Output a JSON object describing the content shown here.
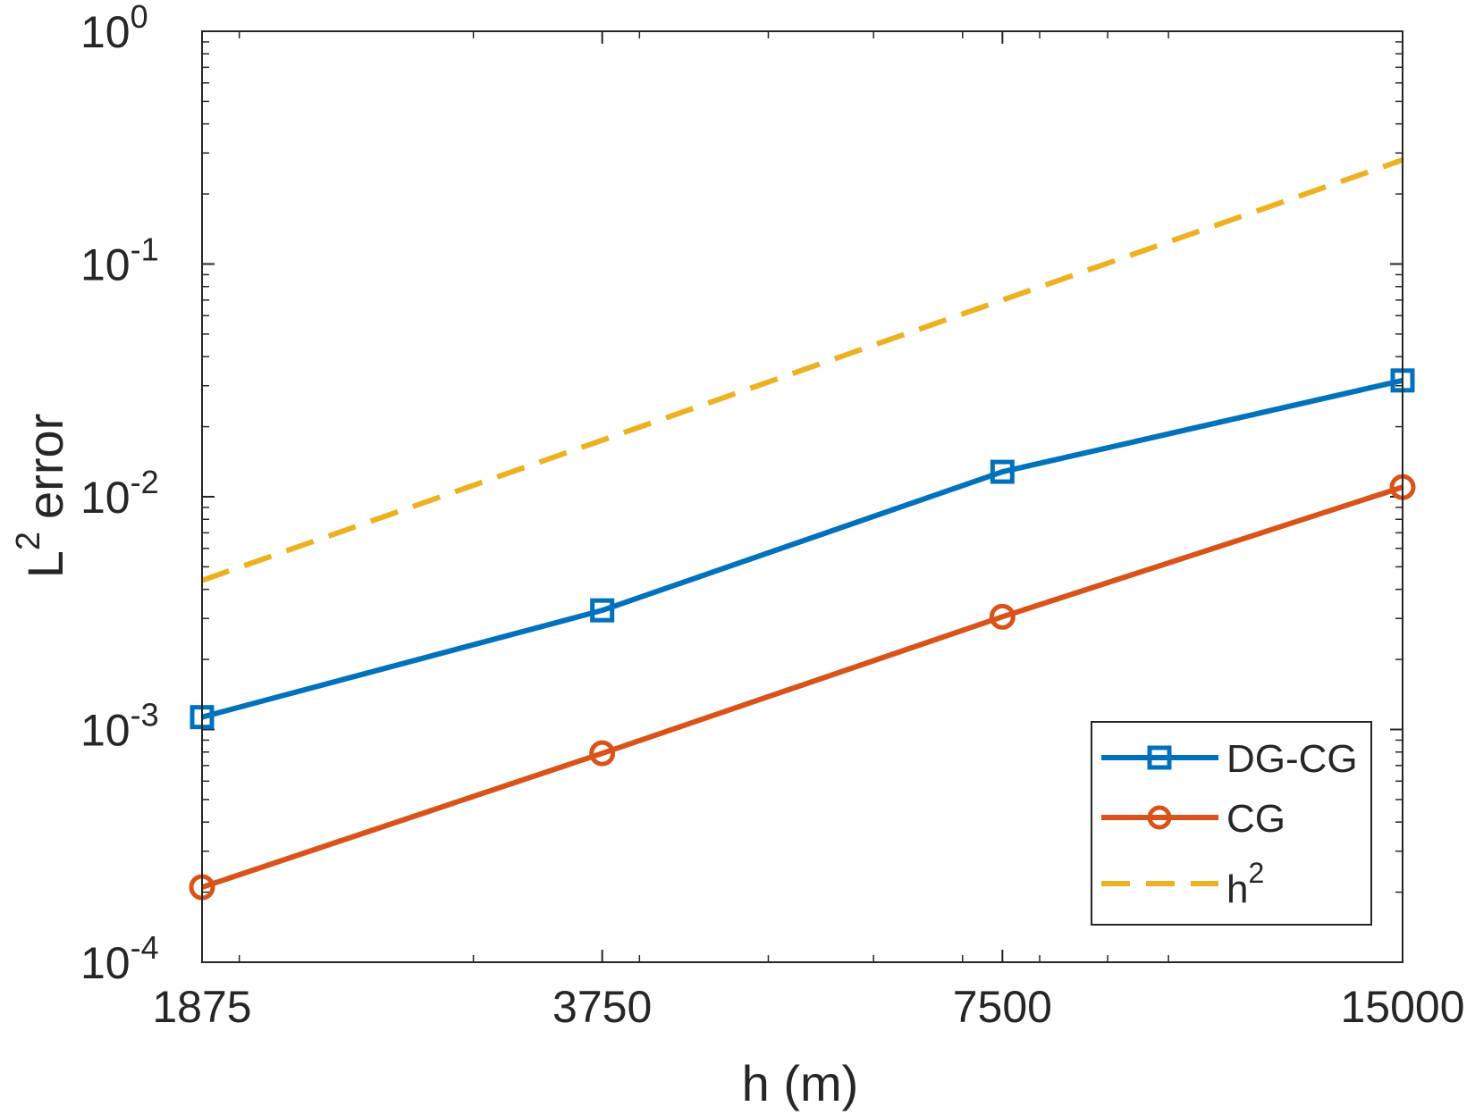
{
  "chart_data": {
    "type": "line",
    "x_scale": "log",
    "y_scale": "log",
    "x": [
      1875,
      3750,
      7500,
      15000
    ],
    "x_tick_labels": [
      "1875",
      "3750",
      "7500",
      "15000"
    ],
    "xlim": [
      1875,
      15000
    ],
    "ylim": [
      0.0001,
      1
    ],
    "y_tick_exponents": [
      "-4",
      "-3",
      "-2",
      "-1",
      "0"
    ],
    "y_tick_base": "10",
    "xlabel": "h (m)",
    "ylabel": {
      "base": "L",
      "sup": "2",
      "rest": "error"
    },
    "grid": false,
    "legend_position": "bottom-right",
    "series": [
      {
        "name": "DG-CG",
        "color": "#0072BD",
        "marker": "square",
        "style": "solid",
        "values": [
          0.00113,
          0.00325,
          0.0128,
          0.0316
        ]
      },
      {
        "name": "CG",
        "color": "#D95319",
        "marker": "circle",
        "style": "solid",
        "values": [
          0.00021,
          0.00079,
          0.00305,
          0.011
        ]
      },
      {
        "name": "h",
        "sup": "2",
        "color": "#EDB120",
        "marker": "none",
        "style": "dashed",
        "values": [
          0.00437,
          0.0175,
          0.07,
          0.28
        ]
      }
    ]
  }
}
